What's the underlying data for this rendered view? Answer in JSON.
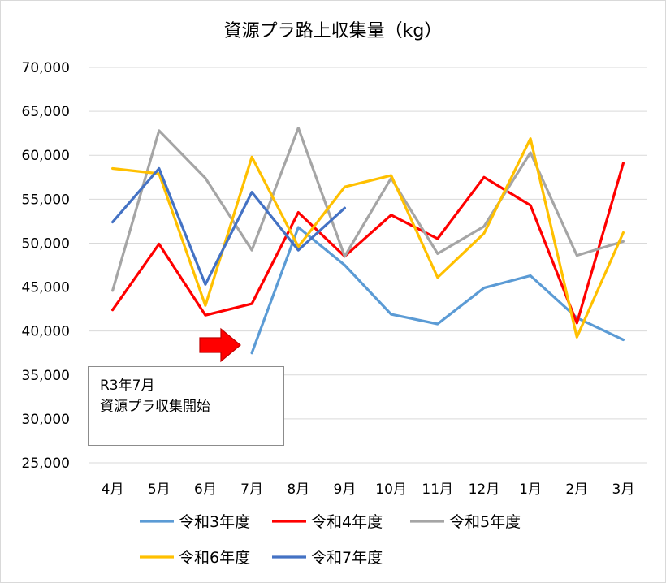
{
  "chart_data": {
    "type": "line",
    "title": "資源プラ路上収集量（kg）",
    "categories": [
      "4月",
      "5月",
      "6月",
      "7月",
      "8月",
      "9月",
      "10月",
      "11月",
      "12月",
      "1月",
      "2月",
      "3月"
    ],
    "ylim": [
      25000,
      70000
    ],
    "yticks": [
      "70,000",
      "65,000",
      "60,000",
      "55,000",
      "50,000",
      "45,000",
      "40,000",
      "35,000",
      "30,000",
      "25,000"
    ],
    "ytick_values": [
      70000,
      65000,
      60000,
      55000,
      50000,
      45000,
      40000,
      35000,
      30000,
      25000
    ],
    "grid": true,
    "legend_position": "bottom",
    "series": [
      {
        "name": "令和3年度",
        "color": "#5b9bd5",
        "values": [
          null,
          null,
          null,
          37500,
          51800,
          47500,
          41900,
          40800,
          44900,
          46300,
          41500,
          39000
        ]
      },
      {
        "name": "令和4年度",
        "color": "#ff0000",
        "values": [
          42400,
          49900,
          41800,
          43100,
          53500,
          48500,
          53200,
          50500,
          57500,
          54300,
          40900,
          59100
        ]
      },
      {
        "name": "令和5年度",
        "color": "#a5a5a5",
        "values": [
          44600,
          62800,
          57400,
          49200,
          63100,
          48500,
          57400,
          48800,
          51900,
          60300,
          48600,
          50200
        ]
      },
      {
        "name": "令和6年度",
        "color": "#ffc000",
        "values": [
          58500,
          57900,
          42900,
          59800,
          49600,
          56400,
          57700,
          46100,
          51100,
          61900,
          39300,
          51200
        ]
      },
      {
        "name": "令和7年度",
        "color": "#4472c4",
        "values": [
          52400,
          58500,
          45300,
          55800,
          49200,
          54000,
          null,
          null,
          null,
          null,
          null,
          null
        ]
      }
    ],
    "annotation": {
      "line1": "R3年7月",
      "line2": "資源プラ収集開始",
      "arrow_color": "#ff0000"
    }
  }
}
